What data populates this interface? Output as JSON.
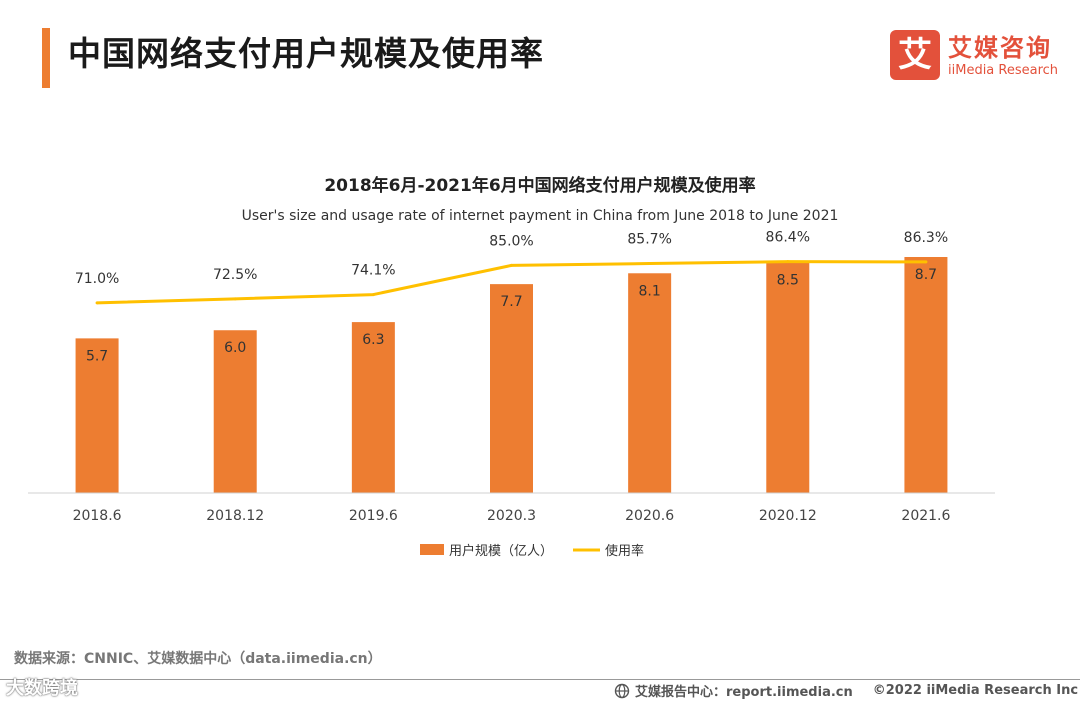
{
  "header": {
    "title": "中国网络支付用户规模及使用率",
    "accent_color": "#ed7d31"
  },
  "logo": {
    "mark": "艾",
    "name_cn": "艾媒咨询",
    "name_en": "iiMedia Research",
    "color": "#e3513b"
  },
  "chart_data": {
    "type": "bar",
    "title": "2018年6月-2021年6月中国网络支付用户规模及使用率",
    "subtitle": "User's size and usage rate of internet payment in China from June 2018 to June 2021",
    "categories": [
      "2018.6",
      "2018.12",
      "2019.6",
      "2020.3",
      "2020.6",
      "2020.12",
      "2021.6"
    ],
    "series": [
      {
        "name": "用户规模（亿人）",
        "type": "bar",
        "color": "#ed7d31",
        "values": [
          5.7,
          6.0,
          6.3,
          7.7,
          8.1,
          8.5,
          8.7
        ],
        "labels": [
          "5.7",
          "6.0",
          "6.3",
          "7.7",
          "8.1",
          "8.5",
          "8.7"
        ]
      },
      {
        "name": "使用率",
        "type": "line",
        "color": "#ffc000",
        "values": [
          71.0,
          72.5,
          74.1,
          85.0,
          85.7,
          86.4,
          86.3
        ],
        "labels": [
          "71.0%",
          "72.5%",
          "74.1%",
          "85.0%",
          "85.7%",
          "86.4%",
          "86.3%"
        ]
      }
    ],
    "ylim": [
      0,
      8.7
    ],
    "y2lim": [
      0,
      90
    ],
    "legend": "bottom",
    "grid": false
  },
  "footer": {
    "source": "数据来源：CNNIC、艾媒数据中心（data.iimedia.cn）",
    "watermark": "大数跨境",
    "report_site": "艾媒报告中心：report.iimedia.cn",
    "copyright": "©2022 iiMedia Research Inc"
  }
}
